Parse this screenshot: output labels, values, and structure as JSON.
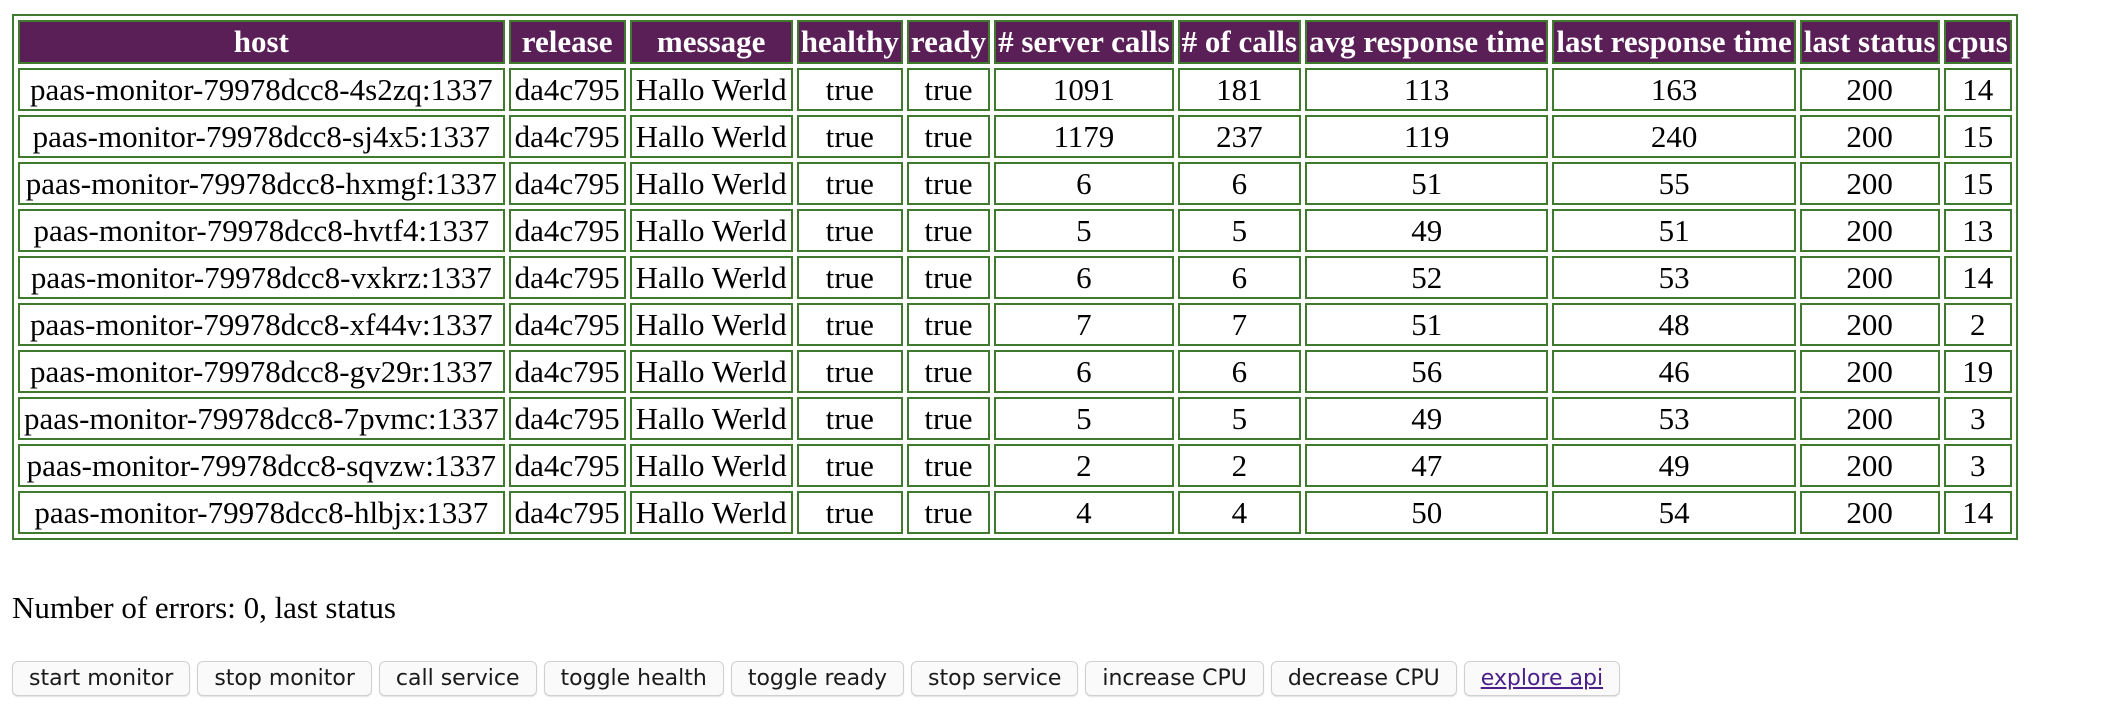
{
  "table": {
    "headers": [
      "host",
      "release",
      "message",
      "healthy",
      "ready",
      "# server calls",
      "# of calls",
      "avg response time",
      "last response time",
      "last status",
      "cpus"
    ],
    "rows": [
      [
        "paas-monitor-79978dcc8-4s2zq:1337",
        "da4c795",
        "Hallo Werld",
        "true",
        "true",
        "1091",
        "181",
        "113",
        "163",
        "200",
        "14"
      ],
      [
        "paas-monitor-79978dcc8-sj4x5:1337",
        "da4c795",
        "Hallo Werld",
        "true",
        "true",
        "1179",
        "237",
        "119",
        "240",
        "200",
        "15"
      ],
      [
        "paas-monitor-79978dcc8-hxmgf:1337",
        "da4c795",
        "Hallo Werld",
        "true",
        "true",
        "6",
        "6",
        "51",
        "55",
        "200",
        "15"
      ],
      [
        "paas-monitor-79978dcc8-hvtf4:1337",
        "da4c795",
        "Hallo Werld",
        "true",
        "true",
        "5",
        "5",
        "49",
        "51",
        "200",
        "13"
      ],
      [
        "paas-monitor-79978dcc8-vxkrz:1337",
        "da4c795",
        "Hallo Werld",
        "true",
        "true",
        "6",
        "6",
        "52",
        "53",
        "200",
        "14"
      ],
      [
        "paas-monitor-79978dcc8-xf44v:1337",
        "da4c795",
        "Hallo Werld",
        "true",
        "true",
        "7",
        "7",
        "51",
        "48",
        "200",
        "2"
      ],
      [
        "paas-monitor-79978dcc8-gv29r:1337",
        "da4c795",
        "Hallo Werld",
        "true",
        "true",
        "6",
        "6",
        "56",
        "46",
        "200",
        "19"
      ],
      [
        "paas-monitor-79978dcc8-7pvmc:1337",
        "da4c795",
        "Hallo Werld",
        "true",
        "true",
        "5",
        "5",
        "49",
        "53",
        "200",
        "3"
      ],
      [
        "paas-monitor-79978dcc8-sqvzw:1337",
        "da4c795",
        "Hallo Werld",
        "true",
        "true",
        "2",
        "2",
        "47",
        "49",
        "200",
        "3"
      ],
      [
        "paas-monitor-79978dcc8-hlbjx:1337",
        "da4c795",
        "Hallo Werld",
        "true",
        "true",
        "4",
        "4",
        "50",
        "54",
        "200",
        "14"
      ]
    ]
  },
  "status_line": {
    "label": "Number of errors: ",
    "error_count": "0",
    "suffix": ", last status"
  },
  "actions": {
    "start_monitor": "start monitor",
    "stop_monitor": "stop monitor",
    "call_service": "call service",
    "toggle_health": "toggle health",
    "toggle_ready": "toggle ready",
    "stop_service": "stop service",
    "increase_cpu": "increase CPU",
    "decrease_cpu": "decrease CPU",
    "explore_api": "explore api"
  },
  "colors": {
    "header_bg": "#5a1f56",
    "border": "#3f7a2e",
    "link": "#4b1f8a"
  }
}
